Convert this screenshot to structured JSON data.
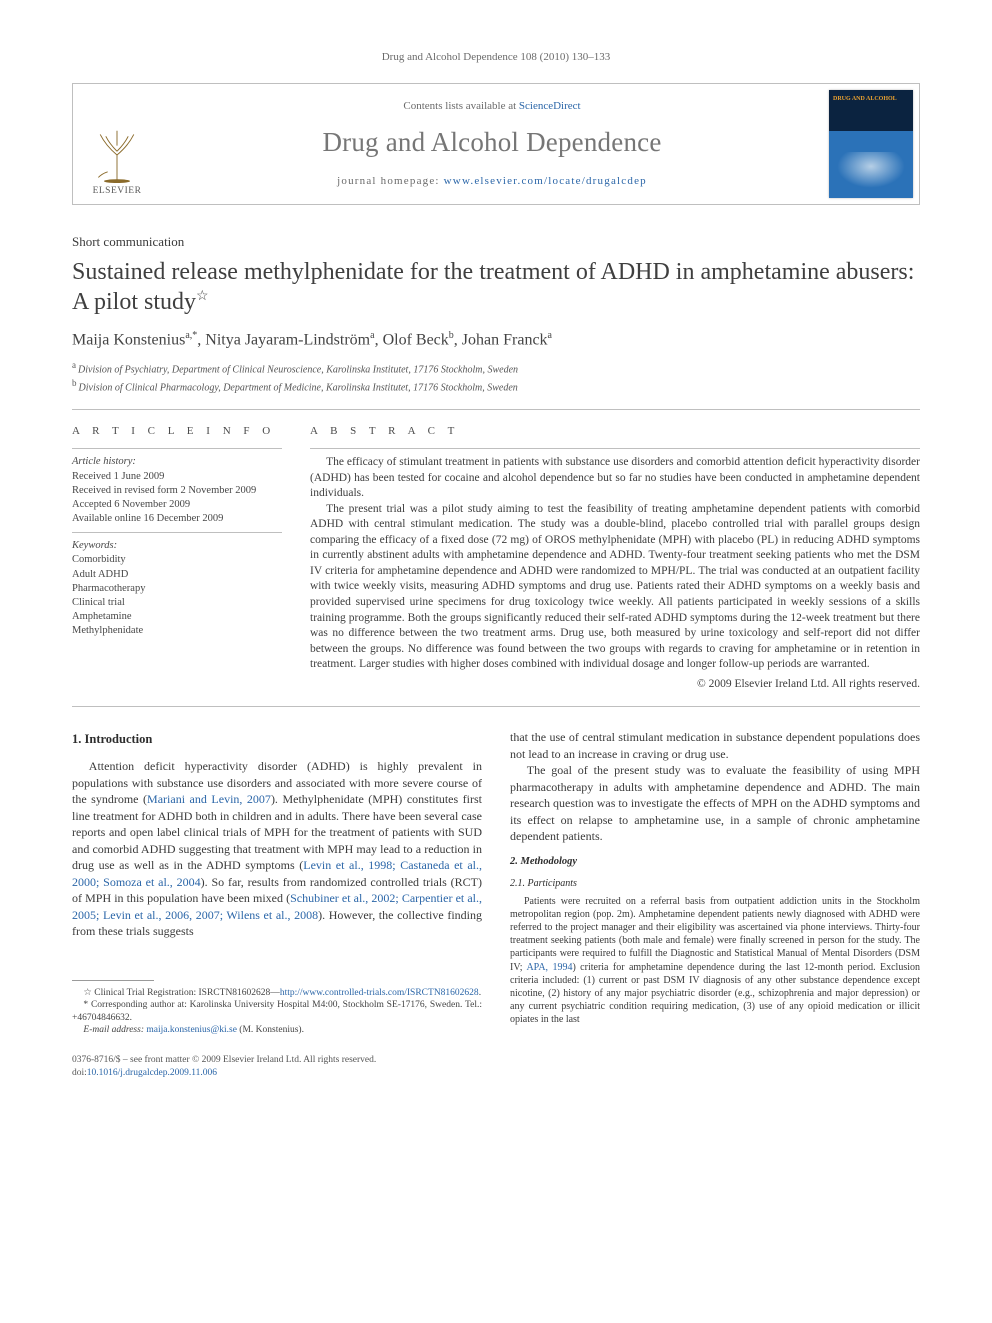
{
  "colors": {
    "link": "#2b66a8",
    "text": "#3a3a3a",
    "headerGrey": "#767676",
    "rule": "#bfbfbf",
    "coverTop": "#0b2340",
    "coverBottom": "#2b72b8",
    "coverTitle": "#e8a030"
  },
  "runningHeader": "Drug and Alcohol Dependence 108 (2010) 130–133",
  "masthead": {
    "elsevierWord": "ELSEVIER",
    "contentsLine": "Contents lists available at ",
    "contentsLink": "ScienceDirect",
    "journalTitle": "Drug and Alcohol Dependence",
    "homepagePrefix": "journal homepage: ",
    "homepageUrl": "www.elsevier.com/locate/drugalcdep",
    "coverTitle": "DRUG AND ALCOHOL"
  },
  "articleType": "Short communication",
  "title": "Sustained release methylphenidate for the treatment of ADHD in amphetamine abusers: A pilot study",
  "titleStar": "☆",
  "authorsHtml": "Maija Konstenius<span class='aff-sup'>a,*</span>, Nitya Jayaram-Lindström<span class='aff-sup'>a</span>, Olof Beck<span class='aff-sup'>b</span>, Johan Franck<span class='aff-sup'>a</span>",
  "affiliations": [
    {
      "marker": "a",
      "text": "Division of Psychiatry, Department of Clinical Neuroscience, Karolinska Institutet, 17176 Stockholm, Sweden"
    },
    {
      "marker": "b",
      "text": "Division of Clinical Pharmacology, Department of Medicine, Karolinska Institutet, 17176 Stockholm, Sweden"
    }
  ],
  "labels": {
    "articleInfo": "A R T I C L E   I N F O",
    "abstract": "A B S T R A C T"
  },
  "history": {
    "head": "Article history:",
    "lines": [
      "Received 1 June 2009",
      "Received in revised form 2 November 2009",
      "Accepted 6 November 2009",
      "Available online 16 December 2009"
    ]
  },
  "keywords": {
    "head": "Keywords:",
    "items": [
      "Comorbidity",
      "Adult ADHD",
      "Pharmacotherapy",
      "Clinical trial",
      "Amphetamine",
      "Methylphenidate"
    ]
  },
  "abstractParas": [
    "The efficacy of stimulant treatment in patients with substance use disorders and comorbid attention deficit hyperactivity disorder (ADHD) has been tested for cocaine and alcohol dependence but so far no studies have been conducted in amphetamine dependent individuals.",
    "The present trial was a pilot study aiming to test the feasibility of treating amphetamine dependent patients with comorbid ADHD with central stimulant medication. The study was a double-blind, placebo controlled trial with parallel groups design comparing the efficacy of a fixed dose (72 mg) of OROS methylphenidate (MPH) with placebo (PL) in reducing ADHD symptoms in currently abstinent adults with amphetamine dependence and ADHD. Twenty-four treatment seeking patients who met the DSM IV criteria for amphetamine dependence and ADHD were randomized to MPH/PL. The trial was conducted at an outpatient facility with twice weekly visits, measuring ADHD symptoms and drug use. Patients rated their ADHD symptoms on a weekly basis and provided supervised urine specimens for drug toxicology twice weekly. All patients participated in weekly sessions of a skills training programme. Both the groups significantly reduced their self-rated ADHD symptoms during the 12-week treatment but there was no difference between the two treatment arms. Drug use, both measured by urine toxicology and self-report did not differ between the groups. No difference was found between the two groups with regards to craving for amphetamine or in retention in treatment. Larger studies with higher doses combined with individual dosage and longer follow-up periods are warranted."
  ],
  "copyright": "© 2009 Elsevier Ireland Ltd. All rights reserved.",
  "body": {
    "introHeading": "1.  Introduction",
    "introP1Html": "Attention deficit hyperactivity disorder (ADHD) is highly prevalent in populations with substance use disorders and associated with more severe course of the syndrome (<a class='ref' href='#'>Mariani and Levin, 2007</a>). Methylphenidate (MPH) constitutes first line treatment for ADHD both in children and in adults. There have been several case reports and open label clinical trials of MPH for the treatment of patients with SUD and comorbid ADHD suggesting that treatment with MPH may lead to a reduction in drug use as well as in the ADHD symptoms (<a class='ref' href='#'>Levin et al., 1998; Castaneda et al., 2000; Somoza et al., 2004</a>). So far, results from randomized controlled trials (RCT) of MPH in this population have been mixed (<a class='ref' href='#'>Schubiner et al., 2002; Carpentier et al., 2005; Levin et al., 2006, 2007; Wilens et al., 2008</a>). However, the collective finding from these trials suggests",
    "introP2": "that the use of central stimulant medication in substance dependent populations does not lead to an increase in craving or drug use.",
    "introP3": "The goal of the present study was to evaluate the feasibility of using MPH pharmacotherapy in adults with amphetamine dependence and ADHD. The main research question was to investigate the effects of MPH on the ADHD symptoms and its effect on relapse to amphetamine use, in a sample of chronic amphetamine dependent patients.",
    "methodsHeading": "2.  Methodology",
    "participantsHeading": "2.1.  Participants",
    "participantsP1Html": "Patients were recruited on a referral basis from outpatient addiction units in the Stockholm metropolitan region (pop. 2m). Amphetamine dependent patients newly diagnosed with ADHD were referred to the project manager and their eligibility was ascertained via phone interviews. Thirty-four treatment seeking patients (both male and female) were finally screened in person for the study. The participants were required to fulfill the Diagnostic and Statistical Manual of Mental Disorders (DSM IV; <a class='ref' href='#'>APA, 1994</a>) criteria for amphetamine dependence during the last 12-month period. Exclusion criteria included: (1) current or past DSM IV diagnosis of any other substance dependence except nicotine, (2) history of any major psychiatric disorder (e.g., schizophrenia and major depression) or any current psychiatric condition requiring medication, (3) use of any opioid medication or illicit opiates in the last"
  },
  "footnotes": {
    "starHtml": "☆  Clinical Trial Registration: ISRCTN81602628—<a href='#'>http://www.controlled-trials.com/ISRCTN81602628</a>.",
    "corrHtml": "*  Corresponding author at: Karolinska University Hospital M4:00, Stockholm SE-17176, Sweden. Tel.: +46704846632.",
    "emailLabel": "E-mail address:",
    "emailLink": "maija.konstenius@ki.se",
    "emailTail": " (M. Konstenius)."
  },
  "footer": {
    "line1": "0376-8716/$ – see front matter © 2009 Elsevier Ireland Ltd. All rights reserved.",
    "doiLabel": "doi:",
    "doiLink": "10.1016/j.drugalcdep.2009.11.006"
  }
}
